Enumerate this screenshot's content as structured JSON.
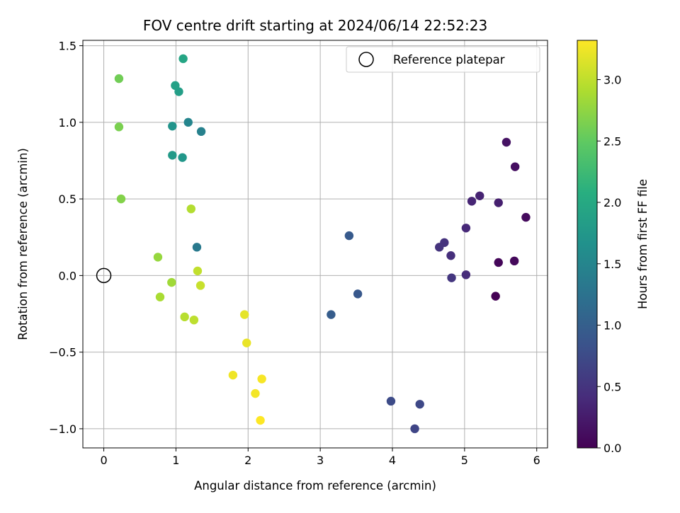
{
  "chart_data": {
    "type": "scatter",
    "title": "FOV centre drift starting at 2024/06/14 22:52:23",
    "xlabel": "Angular distance from reference (arcmin)",
    "ylabel": "Rotation from reference (arcmin)",
    "xlim": [
      -0.29,
      6.15
    ],
    "ylim": [
      -1.125,
      1.535
    ],
    "xticks": [
      0,
      1,
      2,
      3,
      4,
      5,
      6
    ],
    "xtick_labels": [
      "0",
      "1",
      "2",
      "3",
      "4",
      "5",
      "6"
    ],
    "yticks": [
      -1.0,
      -0.5,
      0.0,
      0.5,
      1.0,
      1.5
    ],
    "ytick_labels": [
      "−1.0",
      "−0.5",
      "0.0",
      "0.5",
      "1.0",
      "1.5"
    ],
    "grid": true,
    "legend": {
      "position": "top-right",
      "label": "Reference platepar"
    },
    "reference_point": {
      "x": 0,
      "y": 0
    },
    "colorbar": {
      "label": "Hours from first FF file",
      "colormap": "viridis",
      "range": [
        0.0,
        3.32
      ],
      "ticks": [
        0.0,
        0.5,
        1.0,
        1.5,
        2.0,
        2.5,
        3.0
      ],
      "tick_labels": [
        "0.0",
        "0.5",
        "1.0",
        "1.5",
        "2.0",
        "2.5",
        "3.0"
      ]
    },
    "points": [
      {
        "x": 5.43,
        "y": -0.135,
        "c": 0.0
      },
      {
        "x": 5.47,
        "y": 0.085,
        "c": 0.05
      },
      {
        "x": 5.69,
        "y": 0.095,
        "c": 0.08
      },
      {
        "x": 5.85,
        "y": 0.38,
        "c": 0.1
      },
      {
        "x": 5.7,
        "y": 0.71,
        "c": 0.13
      },
      {
        "x": 5.58,
        "y": 0.87,
        "c": 0.16
      },
      {
        "x": 5.47,
        "y": 0.475,
        "c": 0.3
      },
      {
        "x": 5.21,
        "y": 0.52,
        "c": 0.33
      },
      {
        "x": 5.1,
        "y": 0.485,
        "c": 0.36
      },
      {
        "x": 5.02,
        "y": 0.31,
        "c": 0.39
      },
      {
        "x": 5.02,
        "y": 0.005,
        "c": 0.42
      },
      {
        "x": 4.81,
        "y": 0.13,
        "c": 0.45
      },
      {
        "x": 4.72,
        "y": 0.215,
        "c": 0.48
      },
      {
        "x": 4.65,
        "y": 0.185,
        "c": 0.5
      },
      {
        "x": 4.82,
        "y": -0.015,
        "c": 0.53
      },
      {
        "x": 4.31,
        "y": -1.0,
        "c": 0.7
      },
      {
        "x": 4.38,
        "y": -0.84,
        "c": 0.73
      },
      {
        "x": 3.98,
        "y": -0.82,
        "c": 0.76
      },
      {
        "x": 3.52,
        "y": -0.12,
        "c": 0.92
      },
      {
        "x": 3.4,
        "y": 0.26,
        "c": 0.95
      },
      {
        "x": 3.15,
        "y": -0.255,
        "c": 0.98
      },
      {
        "x": 1.29,
        "y": 0.185,
        "c": 1.35
      },
      {
        "x": 1.35,
        "y": 0.94,
        "c": 1.45
      },
      {
        "x": 1.17,
        "y": 1.0,
        "c": 1.5
      },
      {
        "x": 0.95,
        "y": 0.975,
        "c": 1.7
      },
      {
        "x": 1.09,
        "y": 0.77,
        "c": 1.75
      },
      {
        "x": 0.95,
        "y": 0.785,
        "c": 1.8
      },
      {
        "x": 1.04,
        "y": 1.2,
        "c": 1.85
      },
      {
        "x": 0.99,
        "y": 1.24,
        "c": 1.9
      },
      {
        "x": 1.1,
        "y": 1.415,
        "c": 1.95
      },
      {
        "x": 0.21,
        "y": 1.285,
        "c": 2.6
      },
      {
        "x": 0.21,
        "y": 0.97,
        "c": 2.65
      },
      {
        "x": 0.24,
        "y": 0.5,
        "c": 2.7
      },
      {
        "x": 0.75,
        "y": 0.12,
        "c": 2.8
      },
      {
        "x": 0.94,
        "y": -0.045,
        "c": 2.85
      },
      {
        "x": 0.78,
        "y": -0.14,
        "c": 2.9
      },
      {
        "x": 1.21,
        "y": 0.435,
        "c": 2.95
      },
      {
        "x": 1.12,
        "y": -0.27,
        "c": 2.97
      },
      {
        "x": 1.25,
        "y": -0.29,
        "c": 3.0
      },
      {
        "x": 1.3,
        "y": 0.03,
        "c": 3.02
      },
      {
        "x": 1.34,
        "y": -0.065,
        "c": 3.05
      },
      {
        "x": 1.95,
        "y": -0.255,
        "c": 3.2
      },
      {
        "x": 1.98,
        "y": -0.44,
        "c": 3.22
      },
      {
        "x": 1.79,
        "y": -0.65,
        "c": 3.25
      },
      {
        "x": 2.1,
        "y": -0.77,
        "c": 3.27
      },
      {
        "x": 2.19,
        "y": -0.675,
        "c": 3.29
      },
      {
        "x": 2.17,
        "y": -0.945,
        "c": 3.32
      }
    ]
  }
}
